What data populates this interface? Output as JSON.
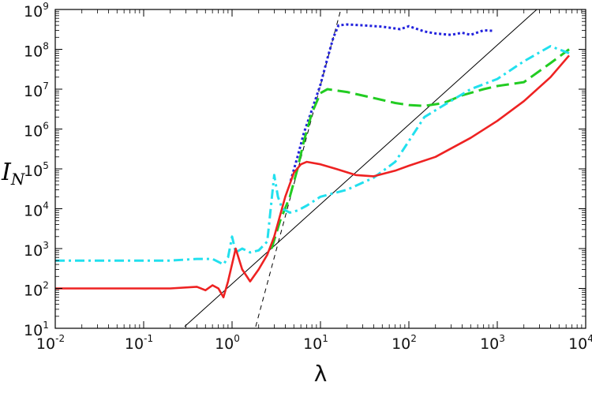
{
  "chart_data": {
    "type": "line",
    "x_scale": "log",
    "y_scale": "log",
    "xlim": [
      0.01,
      10000
    ],
    "ylim": [
      10,
      1000000000
    ],
    "xlabel": "λ",
    "ylabel": {
      "main": "I",
      "sub": "N"
    },
    "grid": false,
    "legend": "none",
    "x_ticks": [
      {
        "base": "10",
        "exp": "-2",
        "value": 0.01
      },
      {
        "base": "10",
        "exp": "-1",
        "value": 0.1
      },
      {
        "base": "10",
        "exp": "0",
        "value": 1
      },
      {
        "base": "10",
        "exp": "1",
        "value": 10
      },
      {
        "base": "10",
        "exp": "2",
        "value": 100
      },
      {
        "base": "10",
        "exp": "3",
        "value": 1000
      },
      {
        "base": "10",
        "exp": "4",
        "value": 10000
      }
    ],
    "y_ticks": [
      {
        "base": "10",
        "exp": "1",
        "value": 10
      },
      {
        "base": "10",
        "exp": "2",
        "value": 100
      },
      {
        "base": "10",
        "exp": "3",
        "value": 1000
      },
      {
        "base": "10",
        "exp": "4",
        "value": 10000
      },
      {
        "base": "10",
        "exp": "5",
        "value": 100000
      },
      {
        "base": "10",
        "exp": "6",
        "value": 1000000
      },
      {
        "base": "10",
        "exp": "7",
        "value": 10000000
      },
      {
        "base": "10",
        "exp": "8",
        "value": 100000000
      },
      {
        "base": "10",
        "exp": "9",
        "value": 1000000000
      }
    ],
    "reference_lines": [
      {
        "style": "solid",
        "color": "#000000",
        "points": [
          [
            0.29,
            11
          ],
          [
            2800,
            1000000000
          ]
        ]
      },
      {
        "style": "dashed",
        "color": "#000000",
        "points": [
          [
            1.85,
            11
          ],
          [
            17,
            1000000000
          ]
        ]
      }
    ],
    "series": [
      {
        "color": "#2222dd",
        "style": "dotted",
        "points": [
          [
            4.6,
            50000
          ],
          [
            5.5,
            200000
          ],
          [
            6.5,
            800000
          ],
          [
            8,
            3000000
          ],
          [
            10,
            13000000
          ],
          [
            12,
            60000000
          ],
          [
            14,
            200000000
          ],
          [
            16,
            400000000
          ],
          [
            20,
            420000000
          ],
          [
            30,
            400000000
          ],
          [
            50,
            370000000
          ],
          [
            80,
            320000000
          ],
          [
            100,
            380000000
          ],
          [
            150,
            280000000
          ],
          [
            200,
            250000000
          ],
          [
            300,
            230000000
          ],
          [
            400,
            260000000
          ],
          [
            500,
            230000000
          ],
          [
            700,
            300000000
          ],
          [
            900,
            290000000
          ]
        ]
      },
      {
        "color": "#22cc22",
        "style": "dashed",
        "points": [
          [
            2.8,
            1000
          ],
          [
            3.5,
            5000
          ],
          [
            4.5,
            20000
          ],
          [
            5.5,
            100000
          ],
          [
            6.5,
            500000
          ],
          [
            8,
            2500000
          ],
          [
            10,
            8000000
          ],
          [
            12,
            10000000
          ],
          [
            20,
            8500000
          ],
          [
            40,
            6000000
          ],
          [
            70,
            4500000
          ],
          [
            100,
            4000000
          ],
          [
            150,
            3800000
          ],
          [
            250,
            4500000
          ],
          [
            400,
            7000000
          ],
          [
            700,
            10000000
          ],
          [
            1000,
            12000000
          ],
          [
            2000,
            15000000
          ],
          [
            4000,
            45000000
          ],
          [
            6500,
            100000000
          ]
        ]
      },
      {
        "color": "#22e0ee",
        "style": "dashdot",
        "points": [
          [
            0.01,
            500
          ],
          [
            0.03,
            500
          ],
          [
            0.1,
            500
          ],
          [
            0.2,
            500
          ],
          [
            0.4,
            550
          ],
          [
            0.6,
            550
          ],
          [
            0.8,
            400
          ],
          [
            0.9,
            600
          ],
          [
            1.0,
            2000
          ],
          [
            1.1,
            800
          ],
          [
            1.3,
            1000
          ],
          [
            1.6,
            800
          ],
          [
            2.0,
            900
          ],
          [
            2.5,
            1500
          ],
          [
            3.0,
            70000
          ],
          [
            3.3,
            20000
          ],
          [
            3.7,
            10000
          ],
          [
            4.5,
            8000
          ],
          [
            5.5,
            9000
          ],
          [
            7,
            12000
          ],
          [
            10,
            20000
          ],
          [
            20,
            30000
          ],
          [
            40,
            60000
          ],
          [
            70,
            150000
          ],
          [
            100,
            500000
          ],
          [
            150,
            2000000
          ],
          [
            250,
            4000000
          ],
          [
            500,
            10000000
          ],
          [
            1000,
            18000000
          ],
          [
            2000,
            50000000
          ],
          [
            4000,
            120000000
          ],
          [
            6500,
            80000000
          ]
        ]
      },
      {
        "color": "#ee2222",
        "style": "solid",
        "points": [
          [
            0.01,
            100
          ],
          [
            0.03,
            100
          ],
          [
            0.1,
            100
          ],
          [
            0.2,
            100
          ],
          [
            0.4,
            110
          ],
          [
            0.5,
            90
          ],
          [
            0.6,
            120
          ],
          [
            0.7,
            100
          ],
          [
            0.8,
            60
          ],
          [
            0.9,
            150
          ],
          [
            1.1,
            1000
          ],
          [
            1.3,
            300
          ],
          [
            1.6,
            150
          ],
          [
            2.0,
            300
          ],
          [
            2.5,
            700
          ],
          [
            3.0,
            2000
          ],
          [
            4.0,
            20000
          ],
          [
            5.0,
            80000
          ],
          [
            6.0,
            130000
          ],
          [
            7.0,
            150000
          ],
          [
            10,
            130000
          ],
          [
            15,
            100000
          ],
          [
            25,
            70000
          ],
          [
            40,
            65000
          ],
          [
            70,
            90000
          ],
          [
            100,
            120000
          ],
          [
            200,
            200000
          ],
          [
            500,
            600000
          ],
          [
            1000,
            1600000
          ],
          [
            2000,
            5000000
          ],
          [
            4000,
            20000000
          ],
          [
            6500,
            70000000
          ]
        ]
      }
    ]
  }
}
